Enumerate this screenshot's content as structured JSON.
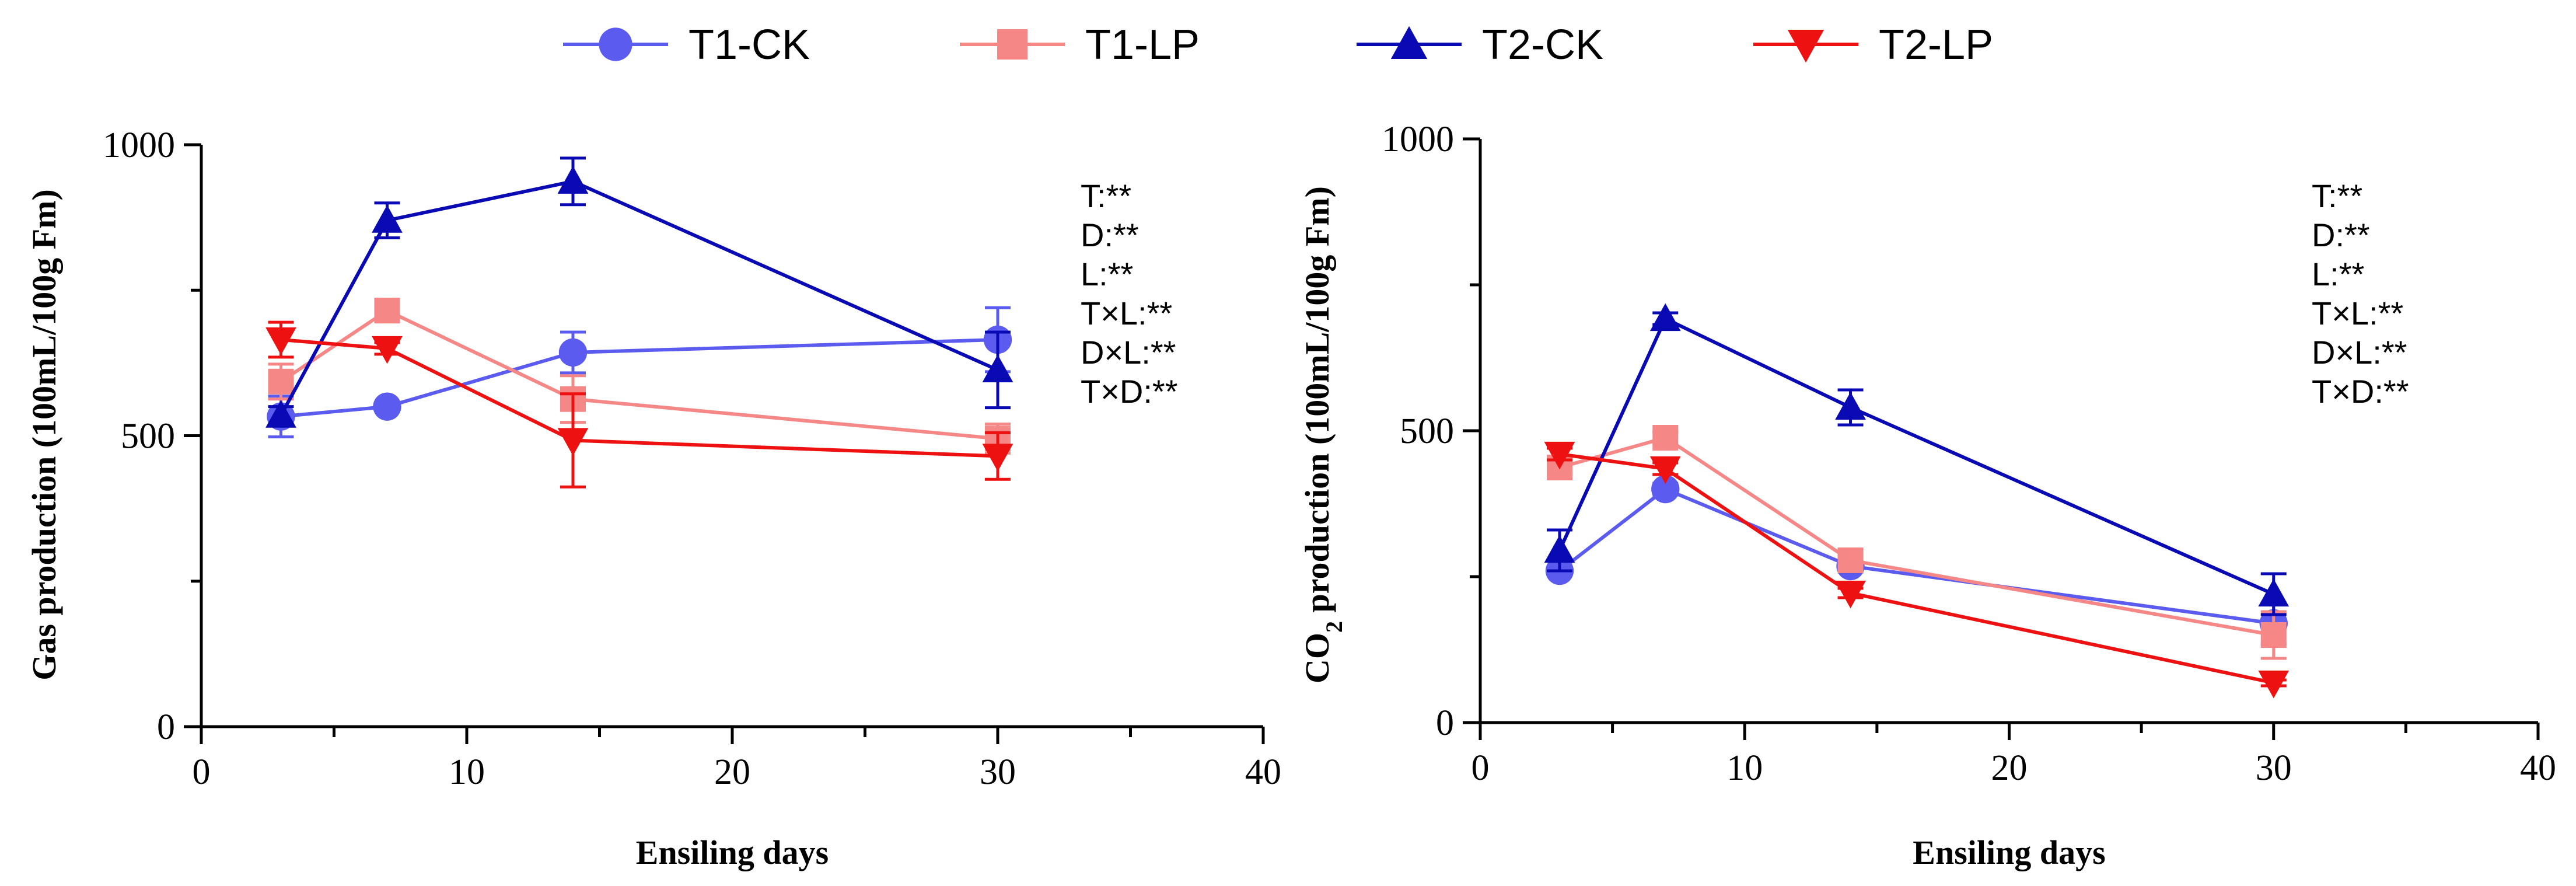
{
  "legend": [
    {
      "label": "T1-CK",
      "color": "#5b5bf0",
      "marker": "circle"
    },
    {
      "label": "T1-LP",
      "color": "#f58787",
      "marker": "square"
    },
    {
      "label": "T2-CK",
      "color": "#0a0ab4",
      "marker": "triangle-up"
    },
    {
      "label": "T2-LP",
      "color": "#ee1111",
      "marker": "triangle-down"
    }
  ],
  "chart_data": [
    {
      "type": "line",
      "title": "",
      "xlabel": "Ensiling days",
      "ylabel": "Gas production (100mL/100g Fm)",
      "xlim": [
        0,
        40
      ],
      "ylim": [
        0,
        1000
      ],
      "xticks": [
        "0",
        "10",
        "20",
        "30",
        "40"
      ],
      "yticks": [
        "0",
        "500",
        "1000"
      ],
      "x": [
        3,
        7,
        14,
        30
      ],
      "series": [
        {
          "name": "T1-CK",
          "values": [
            533,
            550,
            643,
            665
          ],
          "errors": [
            35,
            8,
            35,
            55
          ]
        },
        {
          "name": "T1-LP",
          "values": [
            593,
            715,
            563,
            495
          ],
          "errors": [
            30,
            10,
            40,
            25
          ]
        },
        {
          "name": "T2-CK",
          "values": [
            535,
            870,
            937,
            613
          ],
          "errors": [
            15,
            30,
            40,
            65
          ]
        },
        {
          "name": "T2-LP",
          "values": [
            665,
            650,
            492,
            465
          ],
          "errors": [
            30,
            10,
            80,
            40
          ]
        }
      ],
      "annotations": [
        "T:**",
        "D:**",
        "L:**",
        "T×L:**",
        "D×L:**",
        "T×D:**"
      ]
    },
    {
      "type": "line",
      "title": "",
      "xlabel": "Ensiling days",
      "ylabel_parts": [
        "CO",
        "2",
        " production (100mL/100g Fm)"
      ],
      "xlim": [
        0,
        40
      ],
      "ylim": [
        0,
        1000
      ],
      "xticks": [
        "0",
        "10",
        "20",
        "30",
        "40"
      ],
      "yticks": [
        "0",
        "500",
        "1000"
      ],
      "x": [
        3,
        7,
        14,
        30
      ],
      "series": [
        {
          "name": "T1-CK",
          "values": [
            260,
            400,
            268,
            170
          ],
          "errors": [
            8,
            10,
            10,
            35
          ]
        },
        {
          "name": "T1-LP",
          "values": [
            437,
            488,
            278,
            150
          ],
          "errors": [
            10,
            10,
            10,
            40
          ]
        },
        {
          "name": "T2-CK",
          "values": [
            295,
            692,
            540,
            220
          ],
          "errors": [
            35,
            10,
            30,
            35
          ]
        },
        {
          "name": "T2-LP",
          "values": [
            460,
            435,
            222,
            68
          ],
          "errors": [
            10,
            10,
            8,
            5
          ]
        }
      ],
      "annotations": [
        "T:**",
        "D:**",
        "L:**",
        "T×L:**",
        "D×L:**",
        "T×D:**"
      ]
    }
  ]
}
